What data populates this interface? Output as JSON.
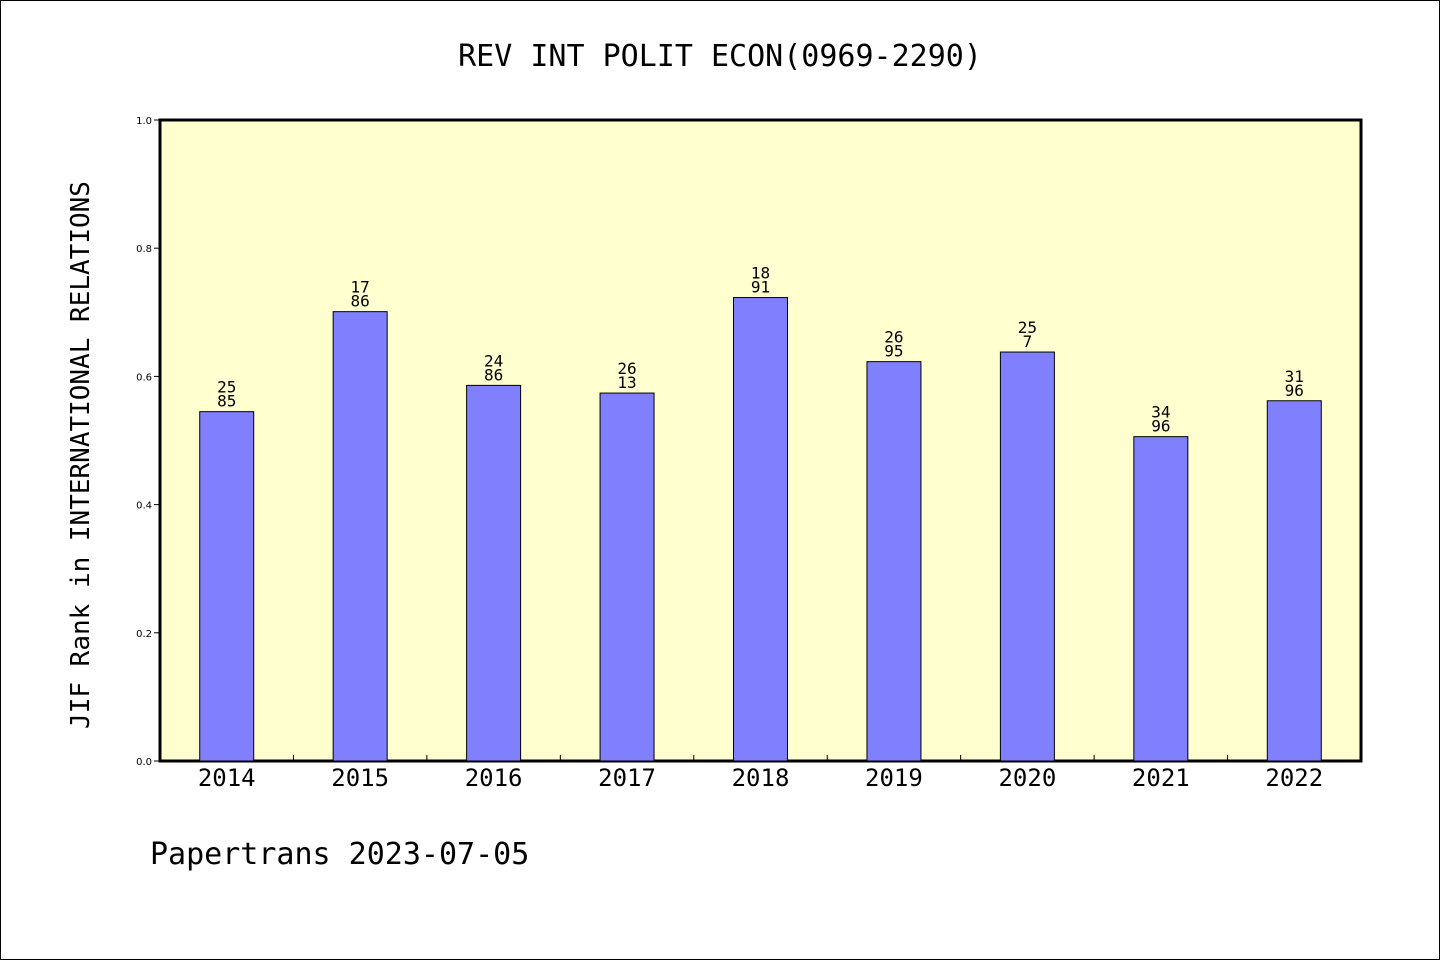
{
  "chart_data": {
    "type": "bar",
    "title": "REV INT POLIT ECON(0969-2290)",
    "xlabel": "",
    "ylabel": "JIF Rank in INTERNATIONAL RELATIONS",
    "ylim": [
      0.0,
      1.0
    ],
    "yticks": [
      "0.0",
      "0.2",
      "0.4",
      "0.6",
      "0.8",
      "1.0"
    ],
    "categories": [
      "2014",
      "2015",
      "2016",
      "2017",
      "2018",
      "2019",
      "2020",
      "2021",
      "2022"
    ],
    "values": [
      0.545,
      0.701,
      0.586,
      0.574,
      0.723,
      0.623,
      0.638,
      0.506,
      0.562
    ],
    "labels": [
      [
        "25",
        "85"
      ],
      [
        "17",
        "86"
      ],
      [
        "24",
        "86"
      ],
      [
        "26",
        "13"
      ],
      [
        "18",
        "91"
      ],
      [
        "26",
        "95"
      ],
      [
        "25",
        "7"
      ],
      [
        "34",
        "96"
      ],
      [
        "31",
        "96"
      ]
    ],
    "grid": false,
    "colors": {
      "plot_background": "#ffffd0",
      "bar_fill": "#8080ff",
      "bar_stroke": "#000000"
    }
  },
  "footer": "Papertrans 2023-07-05"
}
